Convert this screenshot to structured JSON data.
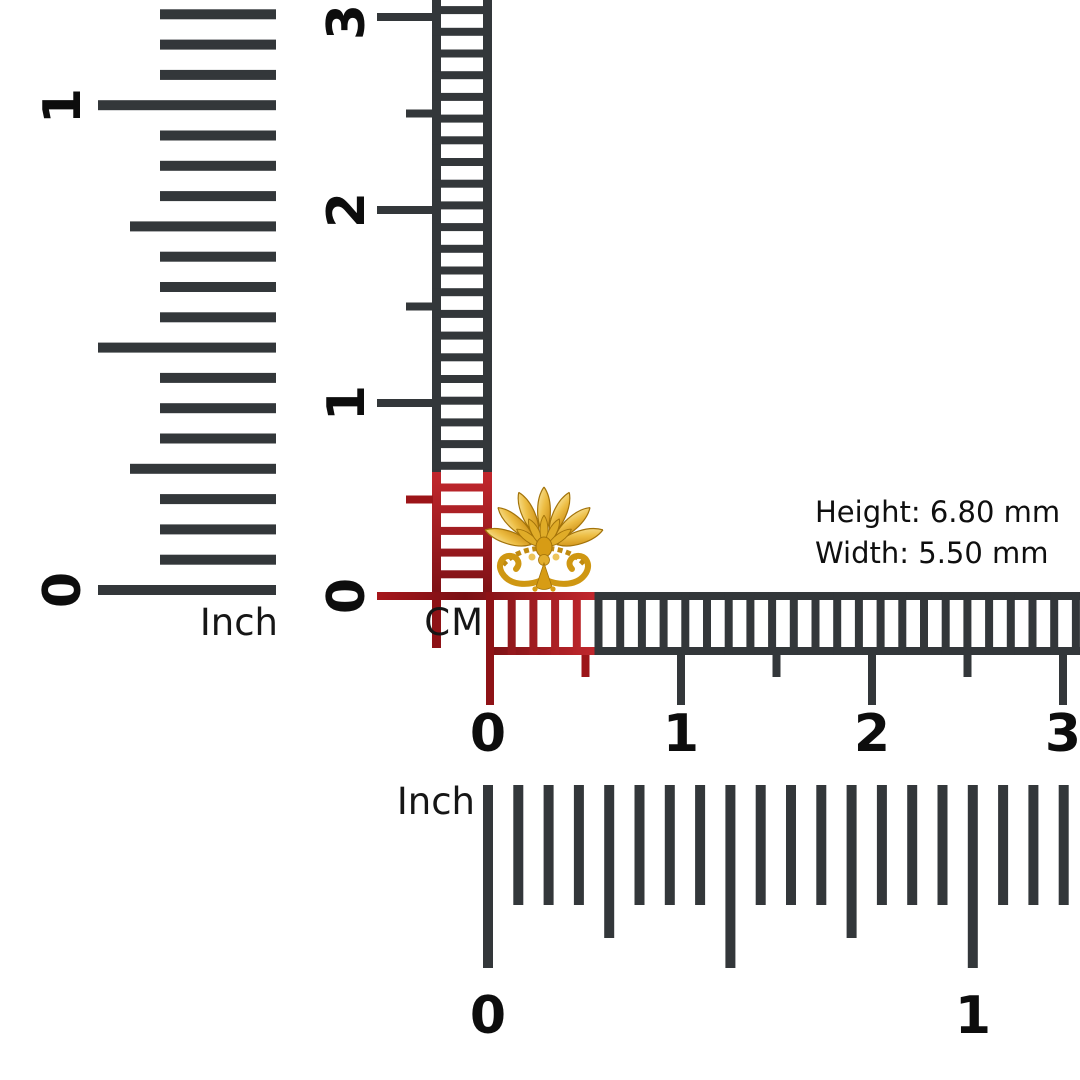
{
  "page": {
    "background": "#ffffff"
  },
  "item": {
    "name": "gold floral stud ornament"
  },
  "dimensions": {
    "height_text": "Height: 6.80 mm",
    "width_text": "Width: 5.50 mm",
    "height_mm": 6.8,
    "width_mm": 5.5
  },
  "unit_labels": {
    "cm": "CM",
    "inch_left": "Inch",
    "inch_bottom": "Inch"
  },
  "rulers": {
    "cm_vertical": {
      "unit": "cm",
      "labels": [
        "0",
        "1",
        "2",
        "3"
      ]
    },
    "cm_horizontal": {
      "unit": "cm",
      "labels": [
        "0",
        "1",
        "2",
        "3"
      ]
    },
    "inch_left": {
      "unit": "inch",
      "labels": [
        "0",
        "1"
      ]
    },
    "inch_bottom": {
      "unit": "inch",
      "labels": [
        "0",
        "1"
      ]
    }
  },
  "colors": {
    "dark": "#33373A",
    "red": "#9C1418",
    "red_bright": "#C2272D",
    "red_deep": "#7A1014",
    "gold_light": "#F9E9A8",
    "gold_mid": "#EDBE45",
    "gold_dark": "#C8860B",
    "text": "#0f0f0f"
  }
}
